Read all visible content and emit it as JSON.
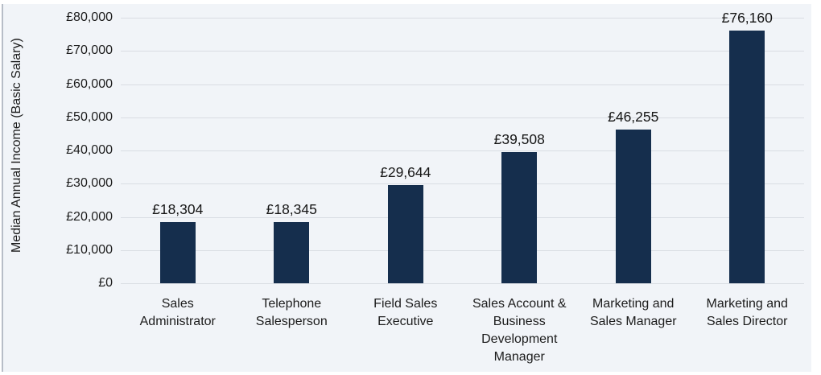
{
  "chart_data": {
    "type": "bar",
    "title": "",
    "xlabel": "",
    "ylabel": "Median Annual Income (Basic Salary)",
    "ylim": [
      0,
      80000
    ],
    "grid": true,
    "legend": false,
    "bar_color": "#152e4d",
    "plot_background": "#f1f4f8",
    "gridline_color": "#d9dde3",
    "categories": [
      "Sales Administrator",
      "Telephone Salesperson",
      "Field Sales Executive",
      "Sales Account & Business Development Manager",
      "Marketing and Sales Manager",
      "Marketing and Sales Director"
    ],
    "category_lines": [
      [
        "Sales",
        "Administrator"
      ],
      [
        "Telephone",
        "Salesperson"
      ],
      [
        "Field Sales",
        "Executive"
      ],
      [
        "Sales Account &",
        "Business",
        "Development",
        "Manager"
      ],
      [
        "Marketing and",
        "Sales Manager"
      ],
      [
        "Marketing and",
        "Sales Director"
      ]
    ],
    "values": [
      18304,
      18345,
      29644,
      39508,
      46255,
      76160
    ],
    "value_labels": [
      "£18,304",
      "£18,345",
      "£29,644",
      "£39,508",
      "£46,255",
      "£76,160"
    ],
    "yticks": [
      {
        "value": 0,
        "label": "£0"
      },
      {
        "value": 10000,
        "label": "£10,000"
      },
      {
        "value": 20000,
        "label": "£20,000"
      },
      {
        "value": 30000,
        "label": "£30,000"
      },
      {
        "value": 40000,
        "label": "£40,000"
      },
      {
        "value": 50000,
        "label": "£50,000"
      },
      {
        "value": 60000,
        "label": "£60,000"
      },
      {
        "value": 70000,
        "label": "£70,000"
      },
      {
        "value": 80000,
        "label": "£80,000"
      }
    ]
  }
}
